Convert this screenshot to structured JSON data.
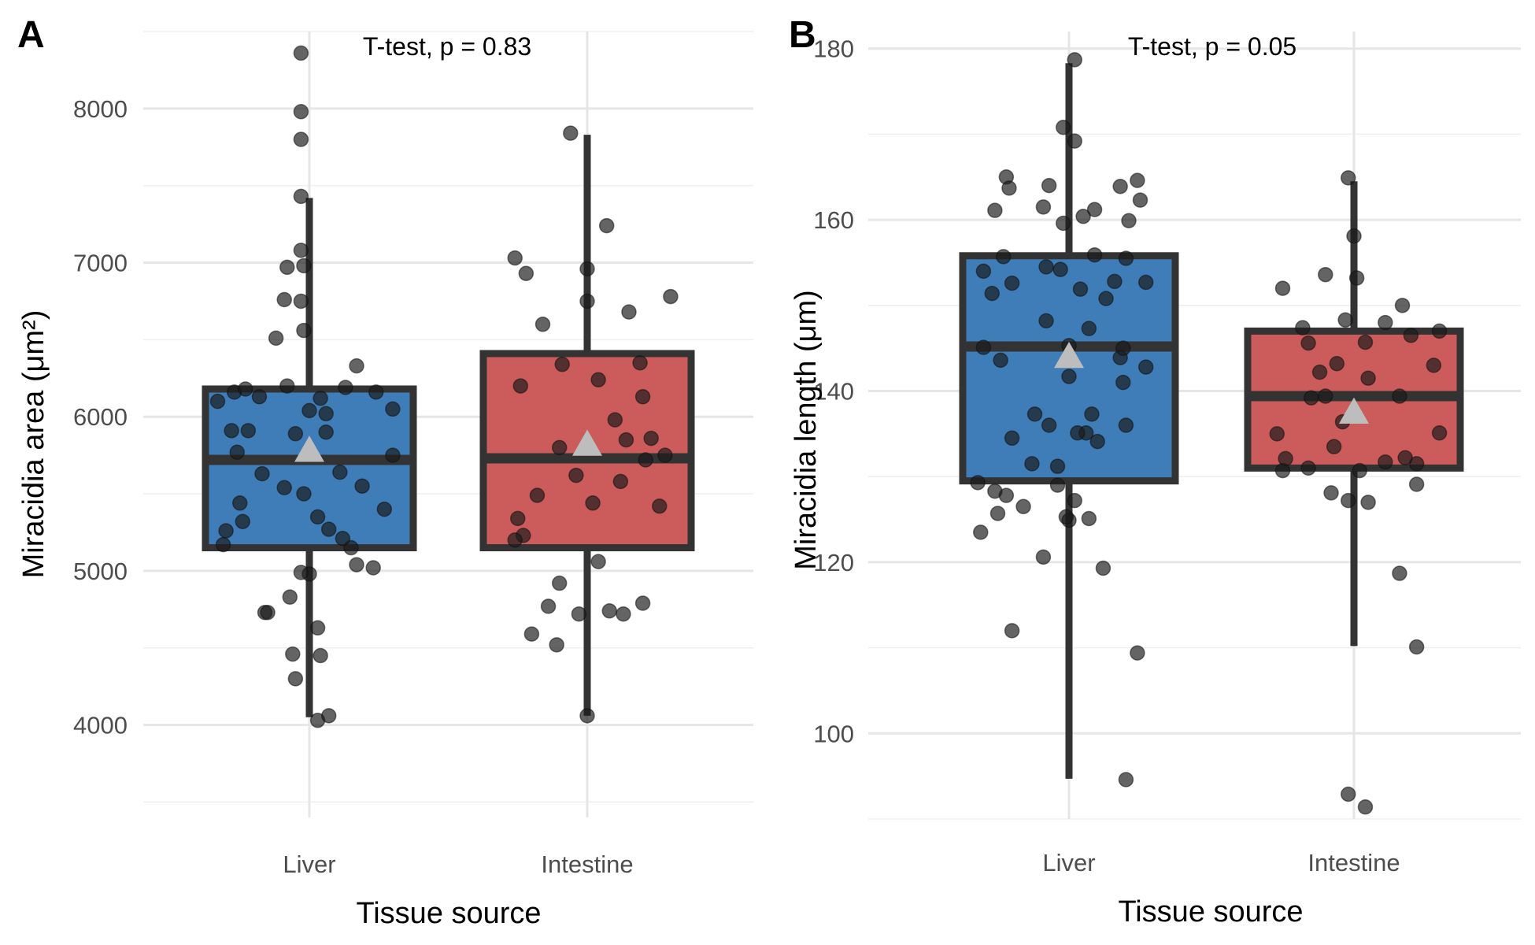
{
  "colors": {
    "liver": "#3f7db8",
    "intestine": "#cc5b5b",
    "outline": "#333333",
    "points": "#1a1a1a",
    "mean_marker": "#bdbdbd"
  },
  "chart_data": [
    {
      "type": "box",
      "panel_label": "A",
      "annotation": "T-test, p = 0.83",
      "xlabel": "Tissue source",
      "ylabel": "Miracidia area (μm²)",
      "categories": [
        "Liver",
        "Intestine"
      ],
      "ylim": [
        3400,
        8500
      ],
      "yticks": [
        4000,
        5000,
        6000,
        7000,
        8000
      ],
      "grid": true,
      "boxes": [
        {
          "category": "Liver",
          "whisker_low": 4050,
          "q1": 5150,
          "median": 5720,
          "q3": 6180,
          "whisker_high": 7420,
          "mean": 5780
        },
        {
          "category": "Intestine",
          "whisker_low": 4060,
          "q1": 5150,
          "median": 5730,
          "q3": 6410,
          "whisker_high": 7830,
          "mean": 5820
        }
      ],
      "points": [
        {
          "category": "Liver",
          "x": [
            -0.03,
            -0.03,
            -0.03,
            -0.03,
            -0.03,
            -0.08,
            -0.02,
            -0.09,
            -0.03,
            -0.02,
            -0.12,
            -0.08,
            -0.27,
            -0.23,
            -0.18,
            0.04,
            0.13,
            0.17,
            0.24,
            0.3,
            0.06,
            0.0,
            -0.05,
            -0.33,
            -0.28,
            -0.22,
            -0.26,
            0.06,
            0.11,
            0.19,
            0.27,
            0.3,
            -0.17,
            -0.09,
            -0.02,
            0.03,
            0.07,
            0.15,
            -0.25,
            -0.24,
            -0.31,
            -0.3,
            0.12,
            0.17,
            0.23,
            0.0,
            -0.03,
            -0.07,
            -0.16,
            -0.15,
            -0.06,
            0.04,
            0.03,
            -0.05,
            0.03,
            0.07
          ],
          "y": [
            8360,
            7980,
            7800,
            7430,
            7080,
            6970,
            6980,
            6760,
            6750,
            6560,
            6510,
            6200,
            6160,
            6180,
            6130,
            6120,
            6190,
            6330,
            6160,
            6050,
            6020,
            6040,
            5890,
            6100,
            5910,
            5910,
            5770,
            5900,
            5640,
            5550,
            5400,
            5750,
            5630,
            5540,
            5500,
            5350,
            5270,
            5150,
            5440,
            5320,
            5170,
            5260,
            5210,
            5040,
            5020,
            4980,
            4990,
            4830,
            4730,
            4730,
            4460,
            4450,
            4630,
            4300,
            4030,
            4060
          ]
        },
        {
          "category": "Intestine",
          "x": [
            -0.06,
            0.07,
            -0.22,
            0.0,
            -0.26,
            0.3,
            0.15,
            0.0,
            -0.16,
            0.19,
            0.2,
            -0.09,
            -0.24,
            0.04,
            0.1,
            0.28,
            0.23,
            -0.1,
            0.21,
            -0.18,
            -0.04,
            0.02,
            0.26,
            -0.25,
            -0.23,
            -0.26,
            0.04,
            -0.1,
            0.2,
            0.13,
            0.08,
            -0.2,
            -0.14,
            -0.11,
            0.0,
            -0.03,
            0.12,
            0.14
          ],
          "y": [
            7840,
            7240,
            6930,
            6960,
            7030,
            6780,
            6680,
            6750,
            6600,
            6350,
            6130,
            6340,
            6200,
            6240,
            5980,
            5750,
            5860,
            5800,
            5720,
            5490,
            5620,
            5440,
            5420,
            5340,
            5230,
            5200,
            5060,
            4920,
            4790,
            4720,
            4740,
            4590,
            4770,
            4520,
            4060,
            4720,
            5580,
            5850
          ]
        }
      ]
    },
    {
      "type": "box",
      "panel_label": "B",
      "annotation": "T-test, p = 0.05",
      "xlabel": "Tissue source",
      "ylabel": "Miracidia length (μm)",
      "categories": [
        "Liver",
        "Intestine"
      ],
      "ylim": [
        90,
        182
      ],
      "yticks": [
        100,
        120,
        140,
        160,
        180
      ],
      "grid": true,
      "boxes": [
        {
          "category": "Liver",
          "whisker_low": 94.7,
          "q1": 129.5,
          "median": 145.2,
          "q3": 155.8,
          "whisker_high": 178.3,
          "mean": 144.0
        },
        {
          "category": "Intestine",
          "whisker_low": 110.2,
          "q1": 131.0,
          "median": 139.4,
          "q3": 147.0,
          "whisker_high": 164.5,
          "mean": 137.5
        }
      ],
      "points": [
        {
          "category": "Liver",
          "x": [
            0.02,
            -0.02,
            0.02,
            -0.22,
            -0.21,
            -0.07,
            -0.26,
            -0.09,
            -0.02,
            0.09,
            0.05,
            0.24,
            0.25,
            0.21,
            0.18,
            -0.23,
            -0.3,
            -0.27,
            -0.08,
            -0.2,
            -0.03,
            0.04,
            0.13,
            0.09,
            0.2,
            0.16,
            0.07,
            0.27,
            -0.08,
            0.0,
            -0.3,
            -0.24,
            0.0,
            0.18,
            0.27,
            0.19,
            0.19,
            0.08,
            -0.07,
            0.1,
            0.06,
            0.2,
            -0.32,
            -0.04,
            -0.26,
            -0.25,
            0.0,
            -0.16,
            -0.22,
            0.02,
            0.07,
            -0.13,
            -0.2,
            -0.12,
            0.03,
            -0.04,
            -0.09,
            0.12,
            0.24,
            0.2,
            -0.2,
            -0.31,
            -0.01
          ],
          "y": [
            178.7,
            170.8,
            169.2,
            165.0,
            163.7,
            164.0,
            161.1,
            161.5,
            159.6,
            161.2,
            160.4,
            164.6,
            162.3,
            159.9,
            163.9,
            155.7,
            154.0,
            151.4,
            154.5,
            152.6,
            154.2,
            151.9,
            150.8,
            155.9,
            155.5,
            152.8,
            147.3,
            152.7,
            148.2,
            145.3,
            145.1,
            143.6,
            141.7,
            143.9,
            142.8,
            145.0,
            141.0,
            137.3,
            136.0,
            134.1,
            135.1,
            136.0,
            129.3,
            129.0,
            128.3,
            125.7,
            124.9,
            126.5,
            127.8,
            127.2,
            125.1,
            131.5,
            134.5,
            137.3,
            135.1,
            131.2,
            120.6,
            119.3,
            109.4,
            94.6,
            112.0,
            123.5,
            125.3
          ],
          "note_x_units": "offset from category centre"
        },
        {
          "category": "Intestine",
          "x": [
            -0.02,
            0.0,
            -0.25,
            -0.18,
            -0.1,
            0.01,
            0.11,
            0.17,
            -0.16,
            -0.03,
            0.04,
            0.2,
            0.3,
            0.28,
            0.05,
            -0.1,
            -0.15,
            -0.27,
            -0.24,
            0.16,
            0.11,
            0.22,
            0.3,
            -0.25,
            -0.16,
            -0.08,
            0.02,
            -0.02,
            0.05,
            0.16,
            0.22,
            -0.02,
            0.04,
            -0.06,
            -0.07,
            -0.04,
            0.18,
            0.22,
            -0.12
          ],
          "y": [
            164.9,
            158.1,
            152.0,
            147.4,
            153.6,
            153.2,
            148.0,
            150.0,
            145.6,
            148.3,
            145.7,
            146.5,
            147.0,
            143.0,
            141.5,
            139.4,
            139.2,
            135.0,
            132.1,
            139.4,
            131.7,
            131.5,
            135.1,
            130.7,
            131.0,
            128.1,
            130.7,
            127.2,
            127.0,
            118.7,
            110.1,
            92.9,
            91.4,
            143.2,
            133.5,
            136.4,
            132.2,
            129.1,
            142.2
          ]
        }
      ]
    }
  ]
}
